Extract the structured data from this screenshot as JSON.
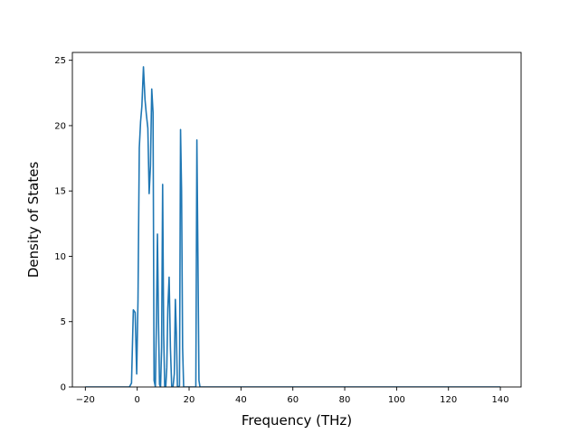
{
  "chart_data": {
    "type": "line",
    "title": "",
    "xlabel": "Frequency (THz)",
    "ylabel": "Density of States",
    "xlim": [
      -25,
      148
    ],
    "ylim": [
      0,
      25.6
    ],
    "xticks": [
      -20,
      0,
      20,
      40,
      60,
      80,
      100,
      120,
      140
    ],
    "yticks": [
      0,
      5,
      10,
      15,
      20,
      25
    ],
    "grid": false,
    "legend": "none",
    "line_color": "#1f77b4",
    "series": [
      {
        "x": [
          -20,
          -3,
          -2.2,
          -1.5,
          -0.8,
          -0.2,
          0.3,
          0.8,
          1.3,
          1.8,
          2.4,
          3.0,
          3.5,
          4.1,
          4.6,
          5.1,
          5.6,
          6.1,
          6.5,
          7.0,
          7.4,
          7.8,
          8.2,
          8.6,
          9.0,
          9.4,
          9.8,
          10.2,
          10.6,
          11.0,
          11.4,
          11.8,
          12.3,
          12.8,
          13.3,
          13.8,
          14.3,
          14.7,
          15.1,
          15.5,
          15.9,
          16.3,
          16.7,
          17.1,
          17.5,
          17.9,
          18.3,
          18.7,
          19.1,
          19.5,
          20.0,
          20.6,
          21.2,
          21.8,
          22.2,
          22.6,
          23.0,
          23.4,
          23.8,
          24.2,
          25,
          140
        ],
        "y": [
          0,
          0,
          0.3,
          5.9,
          5.7,
          1.0,
          6.7,
          18.3,
          20.3,
          21.5,
          24.5,
          22.0,
          20.9,
          19.8,
          14.8,
          16.9,
          22.8,
          21.0,
          0.5,
          0.0,
          5.0,
          11.7,
          5.0,
          0.2,
          0.0,
          3.0,
          15.5,
          4.0,
          0.0,
          0.0,
          1.5,
          6.0,
          8.4,
          3.0,
          0.0,
          0.0,
          1.0,
          6.7,
          4.0,
          0.0,
          0.0,
          0.1,
          19.7,
          15.0,
          3.0,
          0.0,
          0.0,
          0.0,
          0.0,
          0.0,
          0.0,
          0.0,
          0.0,
          0.0,
          0.0,
          0.0,
          18.9,
          10.0,
          0.5,
          0.0,
          0.0,
          0.0
        ]
      }
    ]
  }
}
